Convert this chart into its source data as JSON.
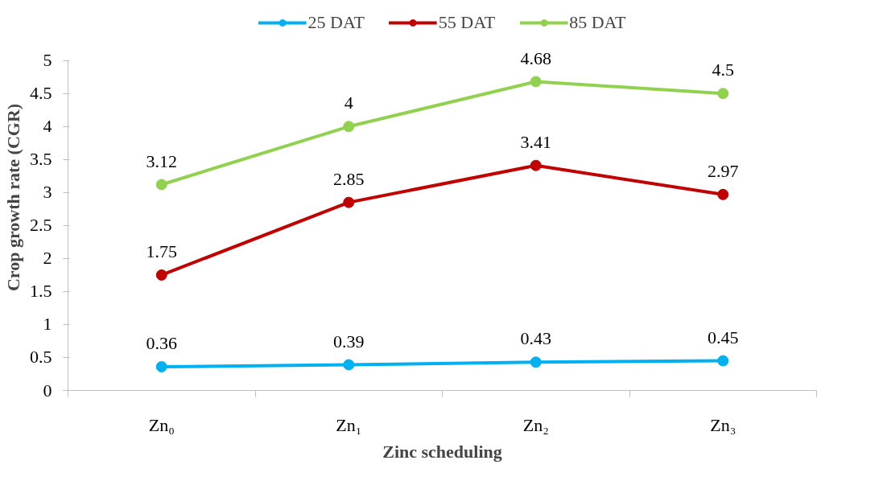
{
  "chart_data": {
    "type": "line",
    "xlabel": "Zinc scheduling",
    "ylabel": "Crop growth rate (CGR)",
    "categories": [
      "Zn₀",
      "Zn₁",
      "Zn₂",
      "Zn₃"
    ],
    "series": [
      {
        "name": "25 DAT",
        "color": "#00b0f0",
        "values": [
          0.36,
          0.39,
          0.43,
          0.45
        ]
      },
      {
        "name": "55 DAT",
        "color": "#c00000",
        "values": [
          1.75,
          2.85,
          3.41,
          2.97
        ]
      },
      {
        "name": "85 DAT",
        "color": "#92d050",
        "values": [
          3.12,
          4,
          4.68,
          4.5
        ]
      }
    ],
    "ylim": [
      0,
      5
    ],
    "yticks": [
      0,
      0.5,
      1,
      1.5,
      2,
      2.5,
      3,
      3.5,
      4,
      4.5,
      5
    ],
    "data_labels": true,
    "legend": "top",
    "grid": false,
    "marker": "circle",
    "line_style": "solid"
  }
}
